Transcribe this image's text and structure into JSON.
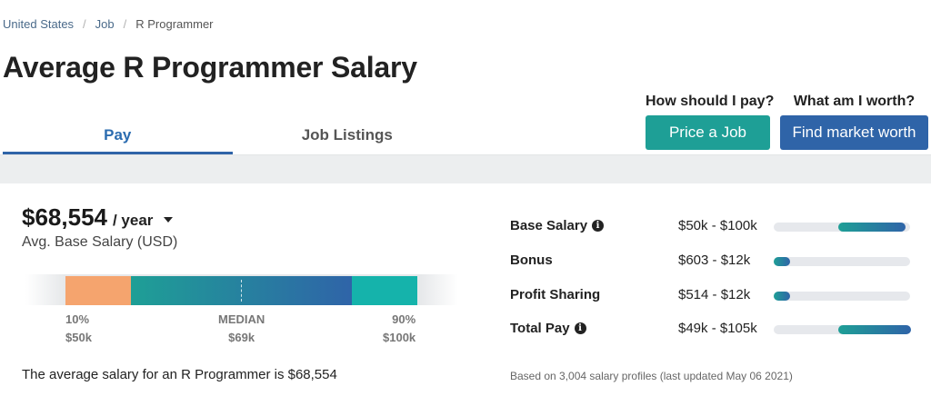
{
  "breadcrumb": {
    "country": "United States",
    "job": "Job",
    "title": "R Programmer"
  },
  "page_title": "Average R Programmer Salary",
  "tabs": [
    {
      "label": "Pay",
      "active": true
    },
    {
      "label": "Job Listings",
      "active": false
    }
  ],
  "cta": {
    "price": {
      "question": "How should I pay?",
      "button": "Price a Job",
      "color": "#1e9f96"
    },
    "worth": {
      "question": "What am I worth?",
      "button": "Find market worth",
      "color": "#2f64a8"
    }
  },
  "salary": {
    "amount": "$68,554",
    "period": "/ year",
    "subtitle": "Avg. Base Salary (USD)",
    "range": {
      "low": {
        "label": "10%",
        "value": "$50k"
      },
      "median": {
        "label": "MEDIAN",
        "value": "$69k"
      },
      "high": {
        "label": "90%",
        "value": "$100k"
      }
    },
    "summary": "The average salary for an R Programmer is $68,554"
  },
  "breakdown": [
    {
      "label": "Base Salary",
      "info": true,
      "range": "$50k - $100k",
      "fill_start": 0.47,
      "fill_end": 0.96
    },
    {
      "label": "Bonus",
      "info": false,
      "range": "$603 - $12k",
      "fill_start": 0.0,
      "fill_end": 0.12
    },
    {
      "label": "Profit Sharing",
      "info": false,
      "range": "$514 - $12k",
      "fill_start": 0.0,
      "fill_end": 0.12
    },
    {
      "label": "Total Pay",
      "info": true,
      "range": "$49k - $105k",
      "fill_start": 0.47,
      "fill_end": 1.0
    }
  ],
  "footnote": "Based on 3,004 salary profiles (last updated May 06 2021)",
  "icons": {
    "info": "info-icon",
    "caret": "caret-down-icon"
  }
}
